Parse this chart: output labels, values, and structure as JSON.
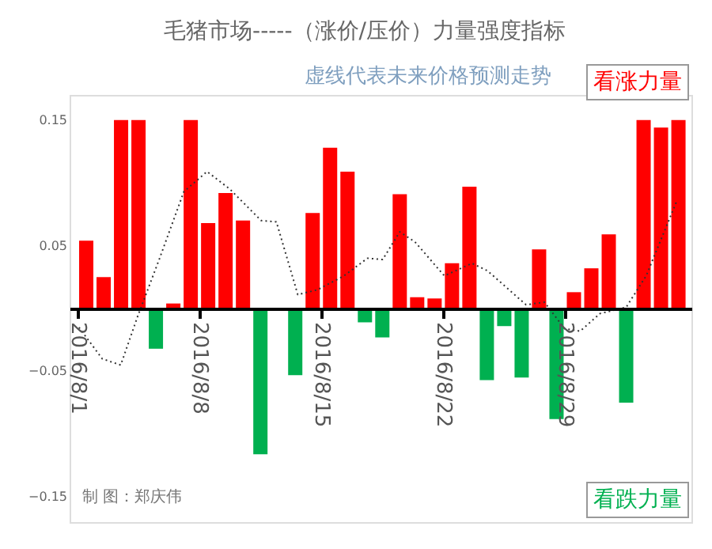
{
  "chart_data": {
    "type": "bar",
    "title": "毛猪市场-----（涨价/压价）力量强度指标",
    "subtitle": "虚线代表未来价格预测走势",
    "x": [
      "2016-08-01T12:00",
      "2016-08-02T12:00",
      "2016-08-03T12:00",
      "2016-08-04T12:00",
      "2016-08-05T12:00",
      "2016-08-06T12:00",
      "2016-08-07T12:00",
      "2016-08-08T12:00",
      "2016-08-09T12:00",
      "2016-08-10T12:00",
      "2016-08-11T12:00",
      "2016-08-12T12:00",
      "2016-08-13T12:00",
      "2016-08-14T12:00",
      "2016-08-15T12:00",
      "2016-08-16T12:00",
      "2016-08-17T12:00",
      "2016-08-18T12:00",
      "2016-08-19T12:00",
      "2016-08-20T12:00",
      "2016-08-21T12:00",
      "2016-08-22T12:00",
      "2016-08-23T12:00",
      "2016-08-24T12:00",
      "2016-08-25T12:00",
      "2016-08-26T12:00",
      "2016-08-27T12:00",
      "2016-08-28T12:00",
      "2016-08-29T12:00",
      "2016-08-30T12:00",
      "2016-08-31T12:00",
      "2016-09-01T12:00",
      "2016-09-02T12:00",
      "2016-09-03T12:00",
      "2016-09-04T12:00"
    ],
    "series": [
      {
        "name": "看涨力量",
        "color": "#ff0000",
        "values": [
          0.054,
          0.025,
          0.15,
          0.15,
          null,
          0.004,
          0.15,
          0.068,
          0.092,
          0.07,
          null,
          null,
          null,
          0.076,
          0.128,
          0.109,
          null,
          null,
          0.091,
          0.009,
          0.008,
          0.036,
          0.097,
          null,
          null,
          null,
          0.047,
          null,
          0.013,
          0.032,
          0.059,
          null,
          0.15,
          0.144,
          0.15
        ]
      },
      {
        "name": "看跌力量",
        "color": "#00b050",
        "values": [
          null,
          null,
          null,
          null,
          -0.032,
          null,
          null,
          null,
          null,
          null,
          -0.116,
          null,
          -0.053,
          null,
          null,
          null,
          -0.011,
          -0.023,
          null,
          null,
          null,
          null,
          null,
          -0.057,
          -0.014,
          -0.055,
          null,
          -0.088,
          null,
          null,
          null,
          -0.075,
          null,
          null,
          null
        ]
      },
      {
        "type": "line",
        "color": "#333333",
        "line_style": "dotted",
        "x": [
          "2016-08-01T02:00",
          "2016-08-02T10:00",
          "2016-08-03T11:30",
          "2016-08-04T11:00",
          "2016-08-05T16:30",
          "2016-08-07T02:30",
          "2016-08-08T10:30",
          "2016-08-09T18:00",
          "2016-08-11T13:00",
          "2016-08-12T10:00",
          "2016-08-13T15:30",
          "2016-08-14T19:00",
          "2016-08-16T07:00",
          "2016-08-17T15:30",
          "2016-08-18T12:30",
          "2016-08-19T12:00",
          "2016-08-20T09:00",
          "2016-08-22T01:30",
          "2016-08-23T15:30",
          "2016-08-24T13:00",
          "2016-08-26T18:00",
          "2016-08-27T19:30",
          "2016-08-28T23:00",
          "2016-08-29T20:30",
          "2016-08-31T00:00",
          "2016-09-01T12:00",
          "2016-09-02T15:30",
          "2016-09-04T10:00"
        ],
        "values": [
          -0.015,
          -0.04,
          -0.045,
          -0.006,
          0.039,
          0.093,
          0.109,
          0.095,
          0.07,
          0.069,
          0.011,
          0.015,
          0.026,
          0.04,
          0.039,
          0.061,
          0.053,
          0.026,
          0.036,
          0.03,
          0.003,
          0.005,
          -0.016,
          -0.018,
          -0.004,
          0.001,
          0.026,
          0.086
        ]
      }
    ],
    "xlim": [
      "2016-08-01",
      "2016-09-04T19:00"
    ],
    "xticks": [
      {
        "value": "2016-08-01",
        "label": "2016/8/1"
      },
      {
        "value": "2016-08-08",
        "label": "2016/8/8"
      },
      {
        "value": "2016-08-15",
        "label": "2016/8/15"
      },
      {
        "value": "2016-08-22",
        "label": "2016/8/22"
      },
      {
        "value": "2016-08-29",
        "label": "2016/8/29"
      }
    ],
    "ylim": [
      -0.17,
      0.17
    ],
    "yticks": [
      -0.15,
      -0.05,
      0.05,
      0.15
    ],
    "legend": "right",
    "annotations": [
      "制 图：郑庆伟"
    ]
  }
}
